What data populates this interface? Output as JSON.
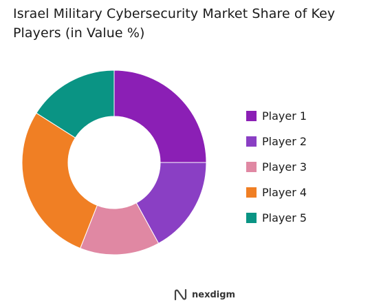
{
  "chart_data": {
    "type": "pie",
    "donut": true,
    "title": "Israel Military Cybersecurity Market Share of Key Players (in Value %)",
    "categories": [
      "Player 1",
      "Player 2",
      "Player 3",
      "Player 4",
      "Player 5"
    ],
    "values": [
      25,
      17,
      14,
      28,
      16
    ],
    "colors": [
      "#8b1fb5",
      "#8a3fc4",
      "#e088a3",
      "#f07f24",
      "#0a9484"
    ],
    "legend_position": "right"
  },
  "branding": {
    "name": "nexdigm",
    "logo_icon": "nexdigm-logo-icon"
  }
}
